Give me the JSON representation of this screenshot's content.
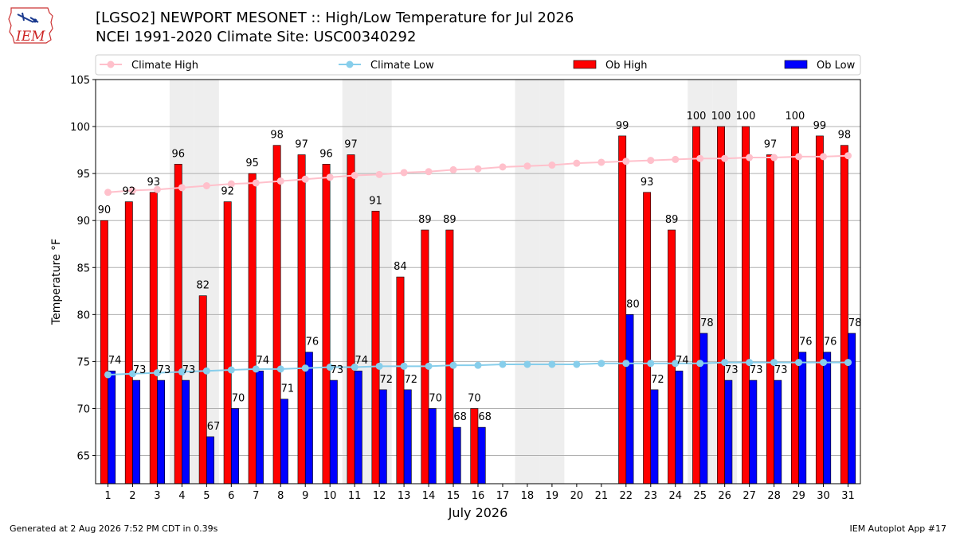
{
  "header": {
    "title": "[LGSO2] NEWPORT MESONET :: High/Low Temperature for Jul 2026",
    "subtitle": "NCEI 1991-2020 Climate Site: USC00340292",
    "logo_text": "IEM"
  },
  "footer": {
    "generated": "Generated at 2 Aug 2026 7:52 PM CDT in 0.39s",
    "app": "IEM Autoplot App #17"
  },
  "chart_data": {
    "type": "bar",
    "xlabel": "July 2026",
    "ylabel": "Temperature °F",
    "ylim": [
      62,
      105
    ],
    "yticks": [
      65,
      70,
      75,
      80,
      85,
      90,
      95,
      100,
      105
    ],
    "grid": true,
    "legend_position": "top",
    "shaded_days": [
      4,
      5,
      11,
      12,
      18,
      19,
      25,
      26
    ],
    "days": [
      1,
      2,
      3,
      4,
      5,
      6,
      7,
      8,
      9,
      10,
      11,
      12,
      13,
      14,
      15,
      16,
      17,
      18,
      19,
      20,
      21,
      22,
      23,
      24,
      25,
      26,
      27,
      28,
      29,
      30,
      31
    ],
    "series": [
      {
        "name": "Climate High",
        "kind": "line",
        "color": "#ffc0cb",
        "values": [
          93.0,
          93.2,
          93.3,
          93.5,
          93.7,
          93.9,
          94.0,
          94.2,
          94.4,
          94.6,
          94.8,
          94.9,
          95.1,
          95.2,
          95.4,
          95.5,
          95.7,
          95.8,
          95.9,
          96.1,
          96.2,
          96.3,
          96.4,
          96.5,
          96.6,
          96.6,
          96.7,
          96.7,
          96.8,
          96.8,
          96.9
        ]
      },
      {
        "name": "Climate Low",
        "kind": "line",
        "color": "#87ceeb",
        "values": [
          73.6,
          73.7,
          73.8,
          73.9,
          74.0,
          74.1,
          74.2,
          74.2,
          74.3,
          74.4,
          74.4,
          74.5,
          74.5,
          74.5,
          74.6,
          74.6,
          74.7,
          74.7,
          74.7,
          74.7,
          74.8,
          74.8,
          74.8,
          74.8,
          74.8,
          74.9,
          74.9,
          74.9,
          74.9,
          74.9,
          74.9
        ]
      },
      {
        "name": "Ob High",
        "kind": "bar",
        "color": "#ff0000",
        "values": [
          90,
          92,
          93,
          96,
          82,
          92,
          95,
          98,
          97,
          96,
          97,
          91,
          84,
          89,
          89,
          70,
          null,
          null,
          null,
          null,
          null,
          99,
          93,
          89,
          100,
          100,
          100,
          97,
          100,
          99,
          98
        ]
      },
      {
        "name": "Ob Low",
        "kind": "bar",
        "color": "#0000ff",
        "values": [
          74,
          73,
          73,
          73,
          67,
          70,
          74,
          71,
          76,
          73,
          74,
          72,
          72,
          70,
          68,
          68,
          null,
          null,
          null,
          null,
          null,
          80,
          72,
          74,
          78,
          73,
          73,
          73,
          76,
          76,
          78
        ]
      }
    ]
  }
}
